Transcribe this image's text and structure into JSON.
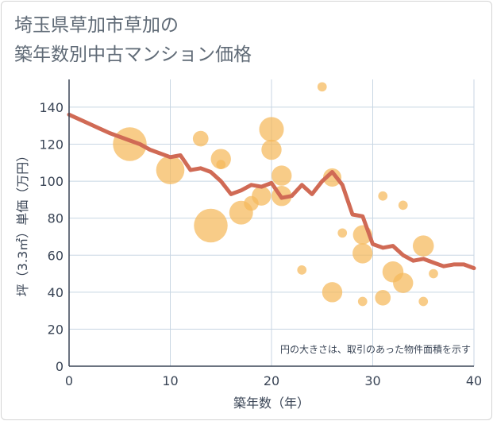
{
  "title_lines": [
    "埼玉県草加市草加の",
    "築年数別中古マンション価格"
  ],
  "chart_data": {
    "type": "scatter",
    "xlabel": "築年数（年）",
    "ylabel": "坪（3.3㎡）単価（万円）",
    "xlim": [
      0,
      40
    ],
    "ylim": [
      0,
      155
    ],
    "xticks": [
      0,
      10,
      20,
      30,
      40
    ],
    "yticks": [
      0,
      20,
      40,
      60,
      80,
      100,
      120,
      140
    ],
    "grid": true,
    "note": "円の大きさは、取引のあった物件面積を示す",
    "colors": {
      "bubble": "#f5b95a",
      "trend": "#d06a55",
      "grid": "#c8d6e3",
      "axis": "#3a4556"
    },
    "points": [
      {
        "x": 6,
        "y": 120,
        "size": 3.2
      },
      {
        "x": 10,
        "y": 106,
        "size": 2.6
      },
      {
        "x": 13,
        "y": 123,
        "size": 1.2
      },
      {
        "x": 14,
        "y": 76,
        "size": 3.2
      },
      {
        "x": 15,
        "y": 112,
        "size": 1.7
      },
      {
        "x": 15,
        "y": 109,
        "size": 0.5
      },
      {
        "x": 17,
        "y": 83,
        "size": 2.1
      },
      {
        "x": 18,
        "y": 88,
        "size": 1.1
      },
      {
        "x": 19,
        "y": 92,
        "size": 1.6
      },
      {
        "x": 20,
        "y": 128,
        "size": 2.2
      },
      {
        "x": 20,
        "y": 117,
        "size": 1.7
      },
      {
        "x": 21,
        "y": 103,
        "size": 1.7
      },
      {
        "x": 21,
        "y": 92,
        "size": 1.7
      },
      {
        "x": 23,
        "y": 52,
        "size": 0.5
      },
      {
        "x": 25,
        "y": 151,
        "size": 0.5
      },
      {
        "x": 26,
        "y": 102,
        "size": 1.5
      },
      {
        "x": 26,
        "y": 40,
        "size": 1.7
      },
      {
        "x": 27,
        "y": 72,
        "size": 0.5
      },
      {
        "x": 29,
        "y": 71,
        "size": 1.6
      },
      {
        "x": 29,
        "y": 61,
        "size": 1.7
      },
      {
        "x": 29,
        "y": 35,
        "size": 0.5
      },
      {
        "x": 31,
        "y": 92,
        "size": 0.5
      },
      {
        "x": 31,
        "y": 37,
        "size": 1.2
      },
      {
        "x": 32,
        "y": 51,
        "size": 1.8
      },
      {
        "x": 33,
        "y": 87,
        "size": 0.5
      },
      {
        "x": 33,
        "y": 45,
        "size": 1.7
      },
      {
        "x": 35,
        "y": 65,
        "size": 1.8
      },
      {
        "x": 35,
        "y": 35,
        "size": 0.5
      },
      {
        "x": 36,
        "y": 50,
        "size": 0.5
      }
    ],
    "trend": {
      "x": [
        0,
        2,
        4,
        6,
        7,
        8,
        10,
        11,
        12,
        13,
        14,
        15,
        16,
        17,
        18,
        19,
        20,
        21,
        22,
        23,
        24,
        25,
        26,
        27,
        28,
        29,
        30,
        31,
        32,
        33,
        34,
        35,
        36,
        37,
        38,
        39,
        40
      ],
      "y": [
        136,
        131,
        126,
        122,
        120,
        117,
        113,
        114,
        106,
        107,
        105,
        100,
        93,
        95,
        98,
        97,
        99,
        91,
        92,
        98,
        93,
        100,
        105,
        98,
        82,
        81,
        66,
        64,
        65,
        60,
        57,
        58,
        56,
        54,
        55,
        55,
        53
      ]
    }
  }
}
